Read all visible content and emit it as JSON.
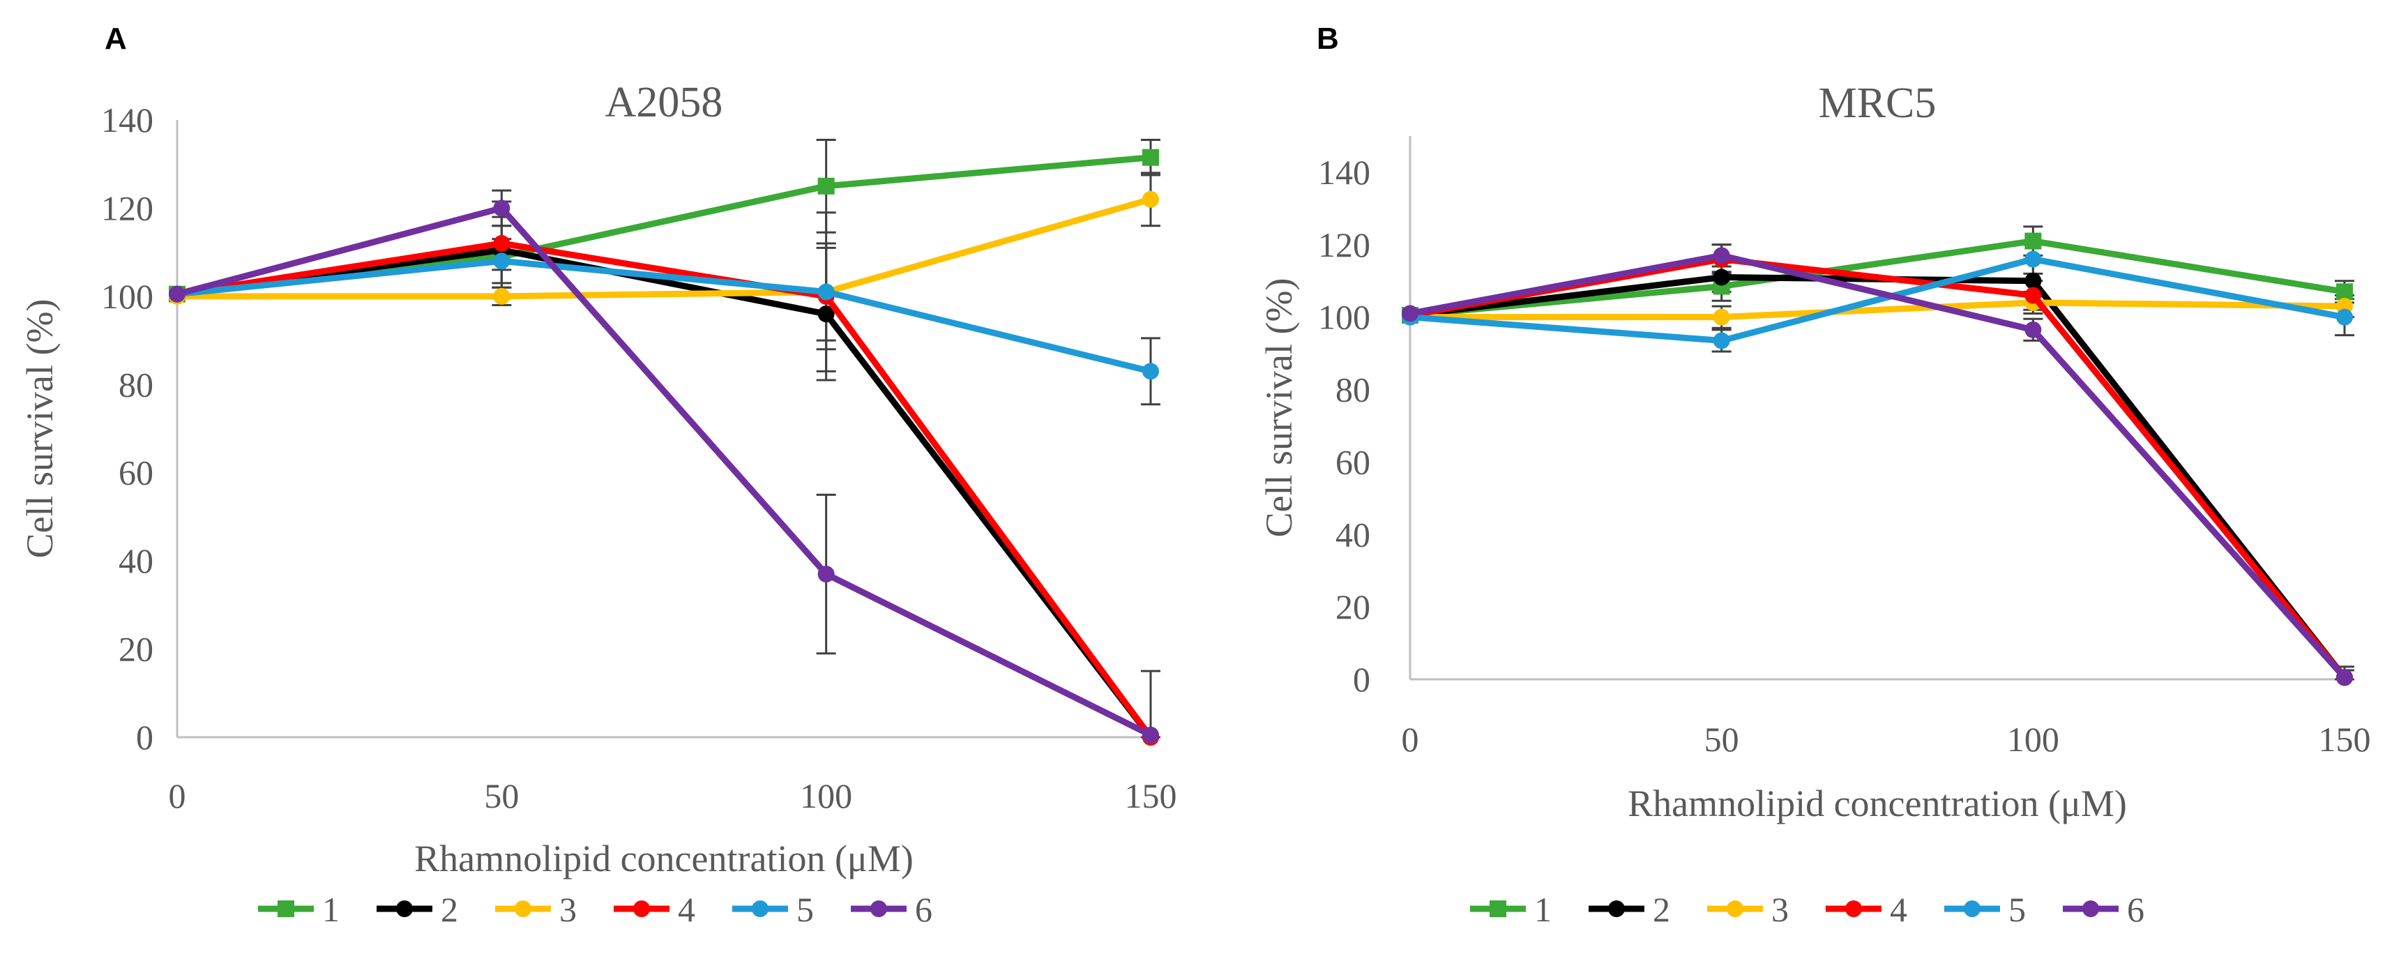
{
  "figure": {
    "panels": [
      {
        "label": "A",
        "title": "A2058"
      },
      {
        "label": "B",
        "title": "MRC5"
      }
    ]
  },
  "chart_data": [
    {
      "type": "line",
      "panel_label": "A",
      "title": "A2058",
      "xlabel": "Rhamnolipid concentration (μM)",
      "ylabel": "Cell survival (%)",
      "categories": [
        "0",
        "50",
        "100",
        "150"
      ],
      "ylim": [
        0,
        140
      ],
      "yticks": [
        0,
        20,
        40,
        60,
        80,
        100,
        120,
        140
      ],
      "grid": false,
      "legend_position": "bottom",
      "series": [
        {
          "name": "1",
          "color": "#3aa935",
          "marker": "square",
          "values": [
            100.5,
            109,
            125,
            131.5
          ],
          "errors": [
            0,
            7,
            10.5,
            4
          ]
        },
        {
          "name": "2",
          "color": "#000000",
          "marker": "circle",
          "values": [
            100.5,
            110.5,
            96,
            0
          ],
          "errors": [
            0,
            11,
            15,
            15
          ]
        },
        {
          "name": "3",
          "color": "#ffc000",
          "marker": "circle",
          "values": [
            100,
            100,
            101,
            122
          ],
          "errors": [
            0,
            2,
            11,
            6
          ]
        },
        {
          "name": "4",
          "color": "#ff0000",
          "marker": "circle",
          "values": [
            100.5,
            112,
            100,
            0
          ],
          "errors": [
            0,
            6,
            12,
            0
          ]
        },
        {
          "name": "5",
          "color": "#1f9ad6",
          "marker": "circle",
          "values": [
            100.5,
            108,
            101,
            83
          ],
          "errors": [
            0,
            5,
            18,
            7.5
          ]
        },
        {
          "name": "6",
          "color": "#7030a0",
          "marker": "circle",
          "values": [
            100.5,
            120,
            37,
            0.5
          ],
          "errors": [
            0,
            4,
            18,
            0
          ]
        }
      ]
    },
    {
      "type": "line",
      "panel_label": "B",
      "title": "MRC5",
      "xlabel": "Rhamnolipid concentration (μM)",
      "ylabel": "Cell survival (%)",
      "categories": [
        "0",
        "50",
        "100",
        "150"
      ],
      "ylim": [
        0,
        150
      ],
      "yticks": [
        0,
        20,
        40,
        60,
        80,
        100,
        120,
        140
      ],
      "grid": false,
      "legend_position": "bottom",
      "series": [
        {
          "name": "1",
          "color": "#3aa935",
          "marker": "square",
          "values": [
            100.5,
            108.5,
            121,
            107
          ],
          "errors": [
            0,
            4,
            4,
            3
          ]
        },
        {
          "name": "2",
          "color": "#000000",
          "marker": "circle",
          "values": [
            100.5,
            111,
            110,
            0.5
          ],
          "errors": [
            0,
            4,
            6,
            3
          ]
        },
        {
          "name": "3",
          "color": "#ffc000",
          "marker": "circle",
          "values": [
            100,
            100,
            104,
            103
          ],
          "errors": [
            0,
            3,
            3,
            3
          ]
        },
        {
          "name": "4",
          "color": "#ff0000",
          "marker": "circle",
          "values": [
            100.5,
            116,
            106,
            0.5
          ],
          "errors": [
            0,
            4,
            4,
            2
          ]
        },
        {
          "name": "5",
          "color": "#1f9ad6",
          "marker": "circle",
          "values": [
            100,
            93.5,
            116,
            100
          ],
          "errors": [
            0,
            3,
            4,
            5
          ]
        },
        {
          "name": "6",
          "color": "#7030a0",
          "marker": "circle",
          "values": [
            101,
            117,
            96.5,
            0.5
          ],
          "errors": [
            0,
            3,
            3,
            2
          ]
        }
      ]
    }
  ]
}
